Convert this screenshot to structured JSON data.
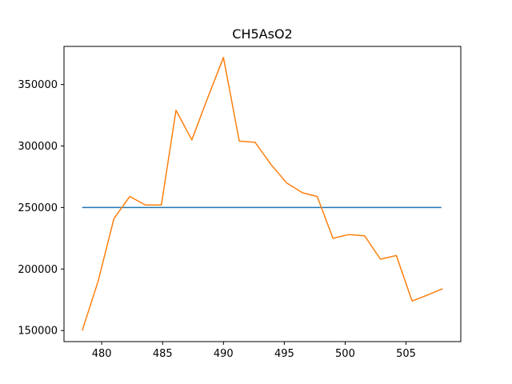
{
  "chart_data": {
    "type": "line",
    "title": "CH5AsO2",
    "xlabel": "",
    "ylabel": "",
    "xlim": [
      476.9,
      509.5
    ],
    "ylim": [
      141000,
      381000
    ],
    "x_ticks": [
      480,
      485,
      490,
      495,
      500,
      505
    ],
    "y_ticks": [
      150000,
      200000,
      250000,
      300000,
      350000
    ],
    "y_tick_labels": [
      "150000",
      "200000",
      "250000",
      "300000",
      "350000"
    ],
    "grid": false,
    "series": [
      {
        "color": "#1f77b4",
        "x": [
          478.4,
          507.9
        ],
        "y": [
          250000,
          250000
        ]
      },
      {
        "color": "#ff7f0e",
        "x": [
          478.4,
          479.7,
          481.0,
          482.3,
          483.6,
          484.9,
          486.1,
          487.4,
          488.7,
          490.0,
          491.3,
          492.6,
          493.9,
          495.2,
          496.5,
          497.7,
          499.0,
          500.3,
          501.6,
          502.9,
          504.2,
          505.5,
          506.8,
          508.0
        ],
        "y": [
          150000,
          190000,
          241000,
          259000,
          252000,
          252000,
          329000,
          305000,
          339000,
          372000,
          304000,
          303000,
          285000,
          270000,
          262000,
          259000,
          225000,
          228000,
          227000,
          208000,
          211000,
          174000,
          179000,
          184000
        ]
      }
    ]
  }
}
